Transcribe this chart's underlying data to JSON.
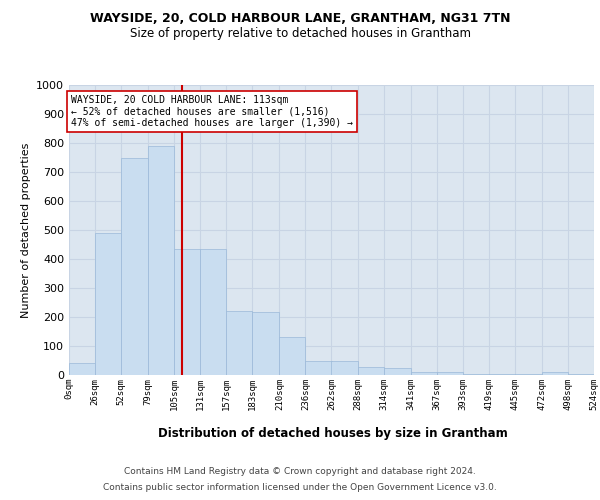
{
  "title": "WAYSIDE, 20, COLD HARBOUR LANE, GRANTHAM, NG31 7TN",
  "subtitle": "Size of property relative to detached houses in Grantham",
  "xlabel": "Distribution of detached houses by size in Grantham",
  "ylabel": "Number of detached properties",
  "annotation_line1": "WAYSIDE, 20 COLD HARBOUR LANE: 113sqm",
  "annotation_line2": "← 52% of detached houses are smaller (1,516)",
  "annotation_line3": "47% of semi-detached houses are larger (1,390) →",
  "footer_line1": "Contains HM Land Registry data © Crown copyright and database right 2024.",
  "footer_line2": "Contains public sector information licensed under the Open Government Licence v3.0.",
  "bar_color": "#c9ddf0",
  "bar_edge_color": "#9ab8d8",
  "grid_color": "#c8d4e4",
  "background_color": "#dce6f0",
  "annotation_box_color": "#ffffff",
  "annotation_line_color": "#cc0000",
  "bin_edges": [
    0,
    26,
    52,
    79,
    105,
    131,
    157,
    183,
    210,
    236,
    262,
    288,
    314,
    341,
    367,
    393,
    419,
    445,
    472,
    498,
    524
  ],
  "bin_labels": [
    "0sqm",
    "26sqm",
    "52sqm",
    "79sqm",
    "105sqm",
    "131sqm",
    "157sqm",
    "183sqm",
    "210sqm",
    "236sqm",
    "262sqm",
    "288sqm",
    "314sqm",
    "341sqm",
    "367sqm",
    "393sqm",
    "419sqm",
    "445sqm",
    "472sqm",
    "498sqm",
    "524sqm"
  ],
  "bar_heights": [
    40,
    490,
    750,
    790,
    435,
    435,
    220,
    218,
    130,
    50,
    50,
    26,
    25,
    10,
    10,
    5,
    5,
    5,
    10,
    5
  ],
  "property_size": 113,
  "ylim": [
    0,
    1000
  ],
  "yticks": [
    0,
    100,
    200,
    300,
    400,
    500,
    600,
    700,
    800,
    900,
    1000
  ]
}
